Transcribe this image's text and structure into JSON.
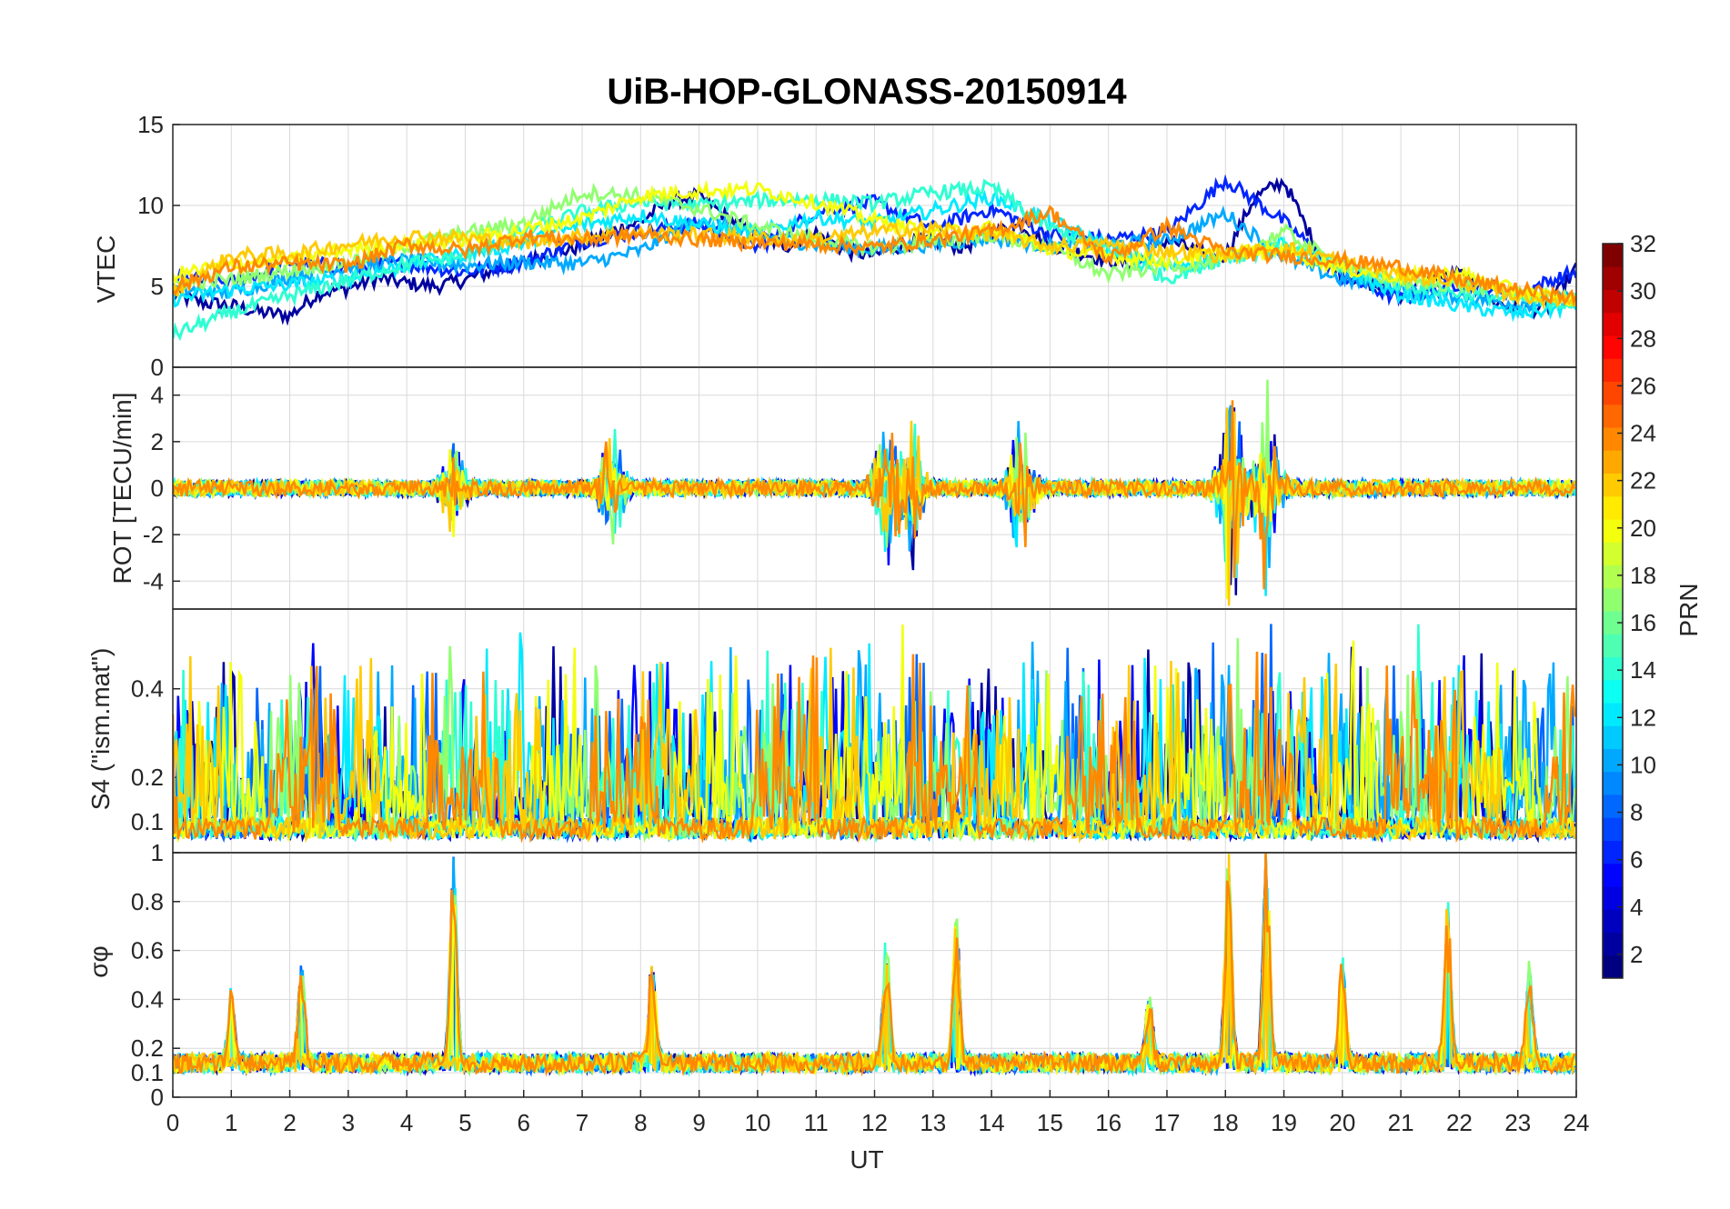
{
  "chart_data": {
    "type": "line",
    "title": "UiB-HOP-GLONASS-20150914",
    "xlabel": "UT",
    "xlim": [
      0,
      24
    ],
    "x_ticks": [
      "0",
      "1",
      "2",
      "3",
      "4",
      "5",
      "6",
      "7",
      "8",
      "9",
      "10",
      "11",
      "12",
      "13",
      "14",
      "15",
      "16",
      "17",
      "18",
      "19",
      "20",
      "21",
      "22",
      "23",
      "24"
    ],
    "grid": true,
    "panels": [
      {
        "id": "vtec",
        "ylabel": "VTEC",
        "ylim": [
          0,
          15
        ],
        "y_ticks": [
          "0",
          "5",
          "10",
          "15"
        ],
        "description": "Vertical total electron content per satellite",
        "series": [
          {
            "prn": 2,
            "x": [
              0,
              0.5,
              1,
              1.5,
              2,
              2.5,
              3,
              3.5,
              4,
              4.5,
              5,
              5.5,
              6,
              6.5,
              7,
              7.5,
              8,
              8.5,
              9,
              9.5,
              10,
              10.5,
              11,
              11.5,
              12,
              12.5,
              13,
              13.5,
              14,
              14.5,
              15,
              15.5,
              16,
              16.5,
              17,
              17.5,
              18,
              18.5,
              19,
              19.5,
              20,
              20.5,
              21,
              21.5,
              22,
              22.5,
              23,
              23.5,
              24
            ],
            "y": [
              4.5,
              4,
              3.8,
              3.4,
              3.2,
              4.6,
              4.9,
              5.5,
              5.2,
              5,
              5.4,
              6,
              6.5,
              7,
              7.5,
              8.4,
              9,
              10.3,
              10.6,
              9.2,
              8.1,
              7.5,
              8.3,
              7.2,
              6.9,
              7.6,
              7.9,
              7.4,
              8.2,
              8.8,
              7.6,
              7.1,
              6.6,
              6.4,
              7.9,
              7.2,
              6.9,
              10.5,
              11.5,
              7.8,
              5.8,
              5.1,
              4.5,
              5.4,
              5.8,
              4.2,
              3.5,
              3.7,
              6.1
            ]
          },
          {
            "prn": 6,
            "x": [
              0,
              1,
              2,
              3,
              4,
              5,
              6,
              7,
              8,
              9,
              10,
              11,
              12,
              13,
              14,
              15,
              16,
              17,
              18,
              19,
              20,
              21,
              22,
              23,
              24
            ],
            "y": [
              5.5,
              5.2,
              6.5,
              6.2,
              6.4,
              5.9,
              6.5,
              7.8,
              8.4,
              8.8,
              7.4,
              9.6,
              10.2,
              8.6,
              9.8,
              8.2,
              7.9,
              8.3,
              11.6,
              9,
              5.6,
              4.2,
              5.2,
              4.6,
              5.9
            ]
          },
          {
            "prn": 10,
            "x": [
              0,
              1,
              2,
              3,
              4,
              5,
              6,
              7,
              8,
              9,
              10,
              11,
              12,
              13,
              14,
              15,
              16,
              17,
              18,
              19,
              20,
              21,
              22,
              23,
              24
            ],
            "y": [
              4.8,
              4.6,
              5.6,
              6.2,
              6.6,
              6.3,
              6.5,
              6.4,
              7.2,
              9.2,
              8.1,
              7.6,
              7.3,
              7.6,
              8,
              7.5,
              7.6,
              7.8,
              9.5,
              6.8,
              5.4,
              4.9,
              4.4,
              3.9,
              4.2
            ]
          },
          {
            "prn": 12,
            "x": [
              0,
              1,
              2,
              3,
              4,
              5,
              6,
              7,
              8,
              9,
              10,
              11,
              12,
              13,
              14,
              15,
              16,
              17,
              18,
              19,
              20,
              21,
              22,
              23,
              24
            ],
            "y": [
              4.2,
              4.8,
              5.1,
              5.5,
              6.3,
              7,
              7.7,
              8.8,
              9.4,
              8.8,
              8.3,
              9.3,
              8.9,
              9.7,
              10.5,
              9.1,
              7.4,
              6.2,
              6.8,
              7.6,
              6,
              4.5,
              3.8,
              3.3,
              3.8
            ]
          },
          {
            "prn": 14,
            "x": [
              0,
              1,
              2,
              3,
              4,
              5,
              6,
              7,
              8,
              9,
              10,
              11,
              12,
              13,
              14,
              15,
              16,
              17,
              18,
              19,
              20,
              21,
              22,
              23,
              24
            ],
            "y": [
              2,
              3.4,
              4.4,
              5.4,
              6.4,
              6.9,
              8.4,
              9.6,
              10.2,
              10,
              10.3,
              10.4,
              10.1,
              10.8,
              11.1,
              8.6,
              7.3,
              5.5,
              6.8,
              7.4,
              6.2,
              5.1,
              4.6,
              4.2,
              3.9
            ]
          },
          {
            "prn": 17,
            "x": [
              0,
              1,
              2,
              3,
              4,
              5,
              6,
              7,
              8,
              9,
              10,
              11,
              12,
              13,
              14,
              15,
              16,
              17,
              18,
              19,
              20,
              21,
              22,
              23,
              24
            ],
            "y": [
              5.2,
              5.4,
              6,
              6.5,
              7.5,
              8.3,
              8.9,
              10.8,
              10.6,
              9.8,
              8.7,
              7.9,
              7.4,
              7.7,
              8.2,
              7.4,
              5.7,
              6.3,
              6.5,
              8.4,
              6.2,
              5.3,
              5.1,
              4.6,
              4.1
            ]
          },
          {
            "prn": 20,
            "x": [
              0,
              1,
              2,
              3,
              4,
              5,
              6,
              7,
              8,
              9,
              10,
              11,
              12,
              13,
              14,
              15,
              16,
              17,
              18,
              19,
              20,
              21,
              22,
              23,
              24
            ],
            "y": [
              5.7,
              6.4,
              6.6,
              7.3,
              7.6,
              7.9,
              8.5,
              9.2,
              10.6,
              10.9,
              11,
              10.2,
              9.1,
              8.3,
              8.6,
              7.3,
              6.9,
              6.6,
              7.1,
              7.2,
              6.1,
              5.6,
              5.8,
              4.7,
              4.1
            ]
          },
          {
            "prn": 22,
            "x": [
              0,
              1,
              2,
              3,
              4,
              5,
              6,
              7,
              8,
              9,
              10,
              11,
              12,
              13,
              14,
              15,
              16,
              17,
              18,
              19,
              20,
              21,
              22,
              23,
              24
            ],
            "y": [
              4.6,
              6.9,
              7,
              7.6,
              8.1,
              8,
              7.7,
              8.1,
              8.3,
              8.2,
              8,
              7.9,
              8.4,
              8.6,
              8.2,
              7.5,
              7.6,
              7.2,
              6.9,
              7.4,
              6.6,
              5.7,
              5.3,
              4.4,
              4.1
            ]
          },
          {
            "prn": 24,
            "x": [
              0,
              1,
              2,
              3,
              4,
              5,
              6,
              7,
              8,
              9,
              10,
              11,
              12,
              13,
              14,
              15,
              16,
              17,
              18,
              19,
              20,
              21,
              22,
              23,
              24
            ],
            "y": [
              4.9,
              6.2,
              6.4,
              6.3,
              7.6,
              7.2,
              8.1,
              7.9,
              8.2,
              7.9,
              7.7,
              7.6,
              7.4,
              7.9,
              8.4,
              9.6,
              6.7,
              8.7,
              7.1,
              6.9,
              6.6,
              6.2,
              5.4,
              4.8,
              4.2
            ]
          }
        ]
      },
      {
        "id": "rot",
        "ylabel": "ROT [TECU/min]",
        "ylim": [
          -5.2,
          5.2
        ],
        "y_ticks": [
          "-4",
          "-2",
          "0",
          "2",
          "4"
        ],
        "description": "Rate of TEC; noise around 0, large excursions near 12-13 UT, 14.5 UT and 18-19 UT (up to about +/-5)"
      },
      {
        "id": "s4",
        "ylabel": "S4 (\"ism.mat\")",
        "ylim": [
          0.03,
          0.58
        ],
        "y_ticks": [
          "0.1",
          "0.2",
          "0.4"
        ],
        "description": "Amplitude scintillation index S4; baseline near 0.05-0.1 with bursts up to about 0.55"
      },
      {
        "id": "sigma_phi",
        "ylabel": "σφ",
        "ylim": [
          0,
          1
        ],
        "y_ticks": [
          "0",
          "0.1",
          "0.2",
          "0.4",
          "0.6",
          "0.8",
          "1"
        ],
        "description": "Phase scintillation index; baseline 0.1-0.2 with spikes near 1, 2.2, 4.8, 8.1, 12.2, 13.4, 16.7, 18.1, 18.7, 20, 21.8, 23.2 UT",
        "peaks": [
          {
            "x": 1.0,
            "y": 0.4
          },
          {
            "x": 2.2,
            "y": 0.52
          },
          {
            "x": 4.8,
            "y": 1.0
          },
          {
            "x": 8.2,
            "y": 0.54
          },
          {
            "x": 12.2,
            "y": 0.66
          },
          {
            "x": 13.4,
            "y": 0.73
          },
          {
            "x": 16.7,
            "y": 0.4
          },
          {
            "x": 18.05,
            "y": 1.0
          },
          {
            "x": 18.7,
            "y": 1.0
          },
          {
            "x": 20.0,
            "y": 0.55
          },
          {
            "x": 21.8,
            "y": 0.77
          },
          {
            "x": 23.2,
            "y": 0.52
          }
        ]
      }
    ],
    "colorbar": {
      "label": "PRN",
      "range": [
        1,
        32
      ],
      "ticks": [
        "2",
        "4",
        "6",
        "8",
        "10",
        "12",
        "14",
        "16",
        "18",
        "20",
        "22",
        "24",
        "26",
        "28",
        "30",
        "32"
      ],
      "colormap": "jet"
    }
  }
}
